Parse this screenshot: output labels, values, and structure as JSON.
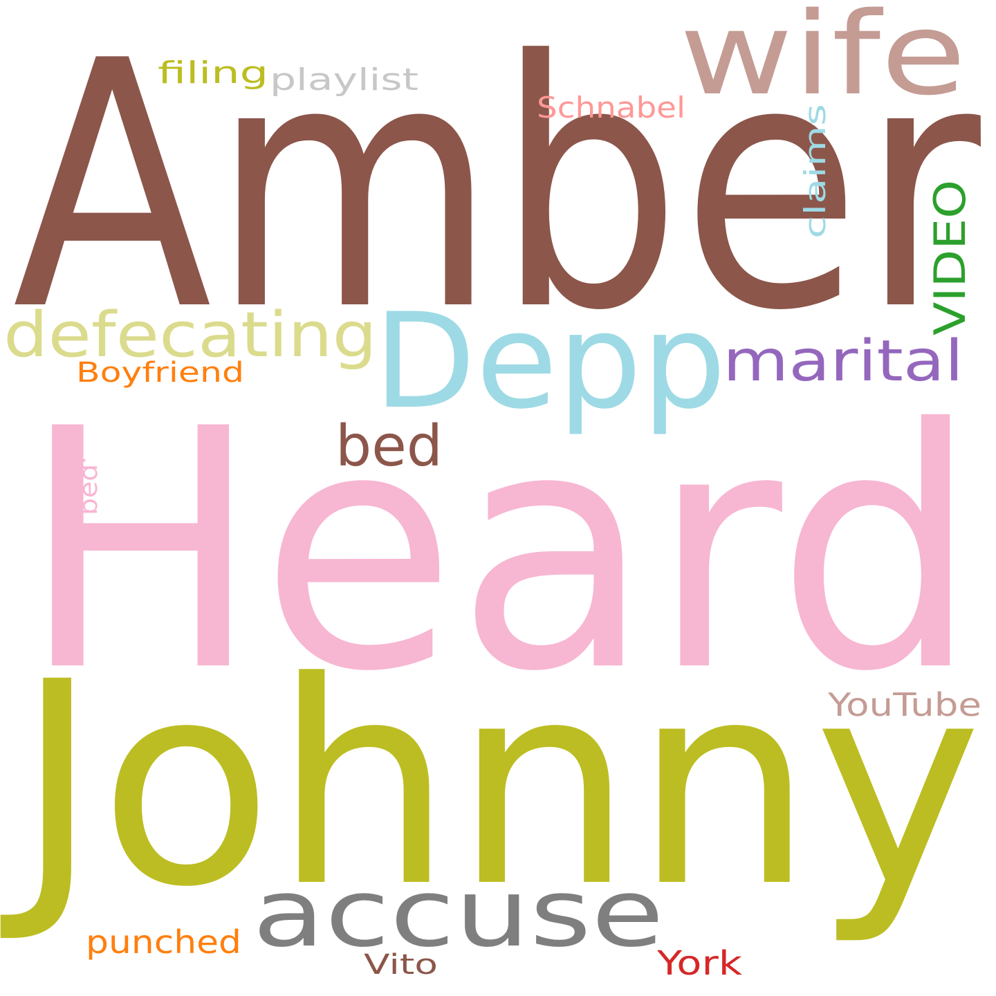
{
  "words": [
    {
      "text": "Amber",
      "color": "#8c564b"
    },
    {
      "text": "Heard",
      "color": "#f7b6d2"
    },
    {
      "text": "Johnny",
      "color": "#bcbd22"
    },
    {
      "text": "Depp",
      "color": "#9edae5"
    },
    {
      "text": "wife",
      "color": "#c49c94"
    },
    {
      "text": "accuse",
      "color": "#7f7f7f"
    },
    {
      "text": "defecating",
      "color": "#dbdb8d"
    },
    {
      "text": "marital",
      "color": "#9467bd"
    },
    {
      "text": "bed",
      "color": "#8c564b"
    },
    {
      "text": "VIDEO",
      "color": "#2ca02c"
    },
    {
      "text": "claims",
      "color": "#9edae5"
    },
    {
      "text": "Schnabel",
      "color": "#ff9896"
    },
    {
      "text": "playlist",
      "color": "#c7c7c7"
    },
    {
      "text": "filing",
      "color": "#bcbd22"
    },
    {
      "text": "Boyfriend",
      "color": "#ff7f0e"
    },
    {
      "text": "bed'",
      "color": "#f7b6d2"
    },
    {
      "text": "YouTube",
      "color": "#c49c94"
    },
    {
      "text": "punched",
      "color": "#ff7f0e"
    },
    {
      "text": "Vito",
      "color": "#8c564b"
    },
    {
      "text": "York",
      "color": "#d62728"
    }
  ]
}
